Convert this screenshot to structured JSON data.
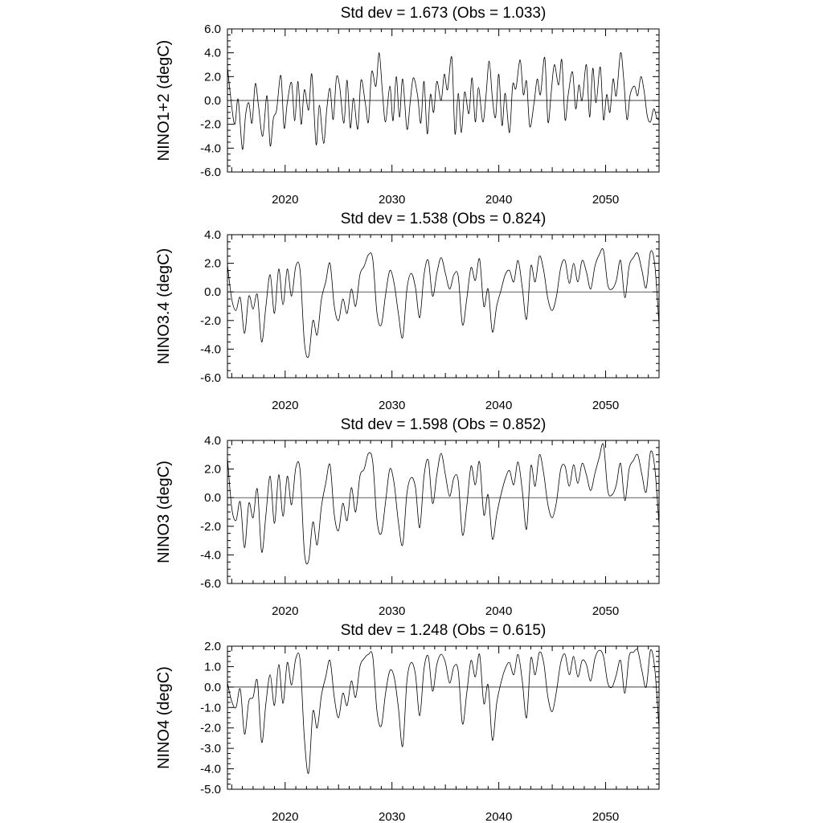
{
  "chart_data": [
    {
      "type": "line",
      "title": "Std dev = 1.673 (Obs = 1.033)",
      "ylabel": "NINO1+2 (degC)",
      "xlabel": "",
      "xlim": [
        2014.6,
        2055
      ],
      "ylim": [
        -6,
        6
      ],
      "ymajor": 2,
      "yminor": 0.5,
      "ytick_labels": [
        "-6.0",
        "-4.0",
        "-2.0",
        "0.0",
        "2.0",
        "4.0",
        "6.0"
      ],
      "xticks": [
        2020,
        2030,
        2040,
        2050
      ],
      "xtick_labels": [
        "2020",
        "2030",
        "2040",
        "2050"
      ],
      "reference_line": 0,
      "series": [
        {
          "x": [
            2014.6,
            2015.0,
            2015.3,
            2015.6,
            2016.0,
            2016.3,
            2016.6,
            2016.9,
            2017.2,
            2017.5,
            2017.9,
            2018.3,
            2018.6,
            2018.9,
            2019.2,
            2019.6,
            2019.9,
            2020.2,
            2020.6,
            2020.9,
            2021.2,
            2021.5,
            2021.8,
            2022.2,
            2022.5,
            2022.9,
            2023.2,
            2023.6,
            2023.9,
            2024.2,
            2024.5,
            2024.8,
            2025.1,
            2025.5,
            2025.8,
            2026.1,
            2026.4,
            2026.8,
            2027.1,
            2027.5,
            2027.8,
            2028.1,
            2028.5,
            2028.8,
            2029.1,
            2029.4,
            2029.8,
            2030.1,
            2030.4,
            2030.7,
            2031.0,
            2031.4,
            2031.7,
            2032.0,
            2032.4,
            2032.7,
            2033.0,
            2033.3,
            2033.6,
            2033.9,
            2034.2,
            2034.6,
            2034.9,
            2035.2,
            2035.6,
            2035.9,
            2036.2,
            2036.5,
            2036.8,
            2037.2,
            2037.5,
            2037.8,
            2038.1,
            2038.5,
            2038.8,
            2039.1,
            2039.4,
            2039.7,
            2040.0,
            2040.3,
            2040.6,
            2041.0,
            2041.3,
            2041.6,
            2042.0,
            2042.3,
            2042.6,
            2042.9,
            2043.3,
            2043.6,
            2043.9,
            2044.3,
            2044.6,
            2044.9,
            2045.2,
            2045.6,
            2045.9,
            2046.2,
            2046.5,
            2046.9,
            2047.2,
            2047.5,
            2047.8,
            2048.2,
            2048.5,
            2048.8,
            2049.1,
            2049.5,
            2049.8,
            2050.1,
            2050.4,
            2050.7,
            2051.0,
            2051.4,
            2051.7,
            2052.0,
            2052.3,
            2052.7,
            2053.0,
            2053.3,
            2053.6,
            2053.9,
            2054.2,
            2054.5,
            2054.8,
            2055.0
          ],
          "values": [
            2.8,
            -0.5,
            -2.0,
            0.1,
            -4.1,
            -1.2,
            -0.2,
            -1.9,
            1.4,
            -0.4,
            -3.0,
            0.4,
            -3.8,
            -1.5,
            -0.8,
            2.1,
            -2.3,
            -0.2,
            1.5,
            -1.7,
            1.6,
            -2.0,
            0.9,
            -0.8,
            2.2,
            -3.7,
            -0.4,
            -3.6,
            -0.7,
            1.0,
            -1.6,
            1.9,
            1.2,
            -1.9,
            1.7,
            -2.3,
            0.2,
            -2.4,
            1.7,
            -0.2,
            -1.8,
            2.4,
            1.2,
            4.0,
            0.8,
            -1.8,
            1.2,
            -1.7,
            2.0,
            -1.4,
            1.8,
            -2.4,
            -0.2,
            1.9,
            0.4,
            -1.9,
            1.6,
            -2.8,
            0.5,
            -1.0,
            1.6,
            0.0,
            2.2,
            0.9,
            3.6,
            -2.8,
            0.6,
            -2.7,
            0.7,
            -1.1,
            1.9,
            -1.8,
            1.1,
            -1.8,
            0.4,
            3.3,
            0.2,
            -1.4,
            2.2,
            -2.1,
            0.6,
            -2.7,
            1.3,
            1.0,
            3.4,
            0.5,
            1.6,
            -2.2,
            -0.2,
            1.8,
            0.5,
            3.6,
            -1.8,
            0.6,
            3.0,
            1.3,
            3.4,
            -1.6,
            0.5,
            2.4,
            -0.7,
            1.3,
            0.0,
            3.0,
            -1.4,
            2.7,
            -0.2,
            2.8,
            -1.6,
            0.5,
            -1.0,
            1.8,
            0.4,
            4.0,
            1.7,
            -1.6,
            0.5,
            1.2,
            0.4,
            2.0,
            0.8,
            -1.3,
            -1.8,
            -0.7,
            -1.5,
            -1.6
          ]
        }
      ]
    },
    {
      "type": "line",
      "title": "Std dev = 1.538 (Obs = 0.824)",
      "ylabel": "NINO3.4 (degC)",
      "xlabel": "",
      "xlim": [
        2014.6,
        2055
      ],
      "ylim": [
        -6,
        4
      ],
      "ymajor": 2,
      "yminor": 0.5,
      "ytick_labels": [
        "-6.0",
        "-4.0",
        "-2.0",
        "0.0",
        "2.0",
        "4.0"
      ],
      "xticks": [
        2020,
        2030,
        2040,
        2050
      ],
      "xtick_labels": [
        "2020",
        "2030",
        "2040",
        "2050"
      ],
      "reference_line": 0,
      "series": [
        {
          "x": [
            2014.6,
            2015.0,
            2015.4,
            2015.8,
            2016.2,
            2016.6,
            2017.0,
            2017.4,
            2017.8,
            2018.2,
            2018.6,
            2019.0,
            2019.4,
            2019.8,
            2020.2,
            2020.6,
            2021.0,
            2021.4,
            2021.8,
            2022.2,
            2022.6,
            2023.0,
            2023.4,
            2023.8,
            2024.2,
            2024.6,
            2025.0,
            2025.4,
            2025.8,
            2026.2,
            2026.6,
            2027.0,
            2027.4,
            2027.8,
            2028.2,
            2028.6,
            2029.0,
            2029.4,
            2029.8,
            2030.2,
            2030.6,
            2031.0,
            2031.4,
            2031.8,
            2032.2,
            2032.6,
            2033.0,
            2033.4,
            2033.8,
            2034.2,
            2034.6,
            2035.0,
            2035.4,
            2035.8,
            2036.2,
            2036.6,
            2037.0,
            2037.4,
            2037.8,
            2038.2,
            2038.6,
            2039.0,
            2039.4,
            2039.8,
            2040.2,
            2040.6,
            2041.0,
            2041.4,
            2041.8,
            2042.2,
            2042.6,
            2043.0,
            2043.4,
            2043.8,
            2044.2,
            2044.6,
            2045.0,
            2045.4,
            2045.8,
            2046.2,
            2046.6,
            2047.0,
            2047.4,
            2047.8,
            2048.2,
            2048.6,
            2049.0,
            2049.4,
            2049.8,
            2050.2,
            2050.6,
            2051.0,
            2051.4,
            2051.8,
            2052.2,
            2052.6,
            2053.0,
            2053.4,
            2053.8,
            2054.2,
            2054.6,
            2055.0
          ],
          "values": [
            1.9,
            -0.5,
            -1.3,
            -0.4,
            -2.9,
            -0.3,
            -1.2,
            -0.2,
            -3.5,
            -1.0,
            1.2,
            -1.5,
            1.6,
            -0.9,
            1.6,
            -0.3,
            1.8,
            1.5,
            -3.5,
            -4.5,
            -2.0,
            -3.0,
            -0.5,
            0.7,
            2.0,
            -1.0,
            -2.0,
            -0.5,
            -1.5,
            0.2,
            -1.0,
            1.2,
            1.8,
            2.6,
            2.3,
            -1.5,
            -2.3,
            -0.2,
            1.5,
            0.6,
            -1.5,
            -3.2,
            0.2,
            1.3,
            0.3,
            -1.8,
            1.2,
            2.2,
            -0.3,
            1.3,
            2.4,
            1.3,
            0.2,
            1.2,
            1.1,
            -2.3,
            -0.5,
            1.7,
            0.8,
            2.3,
            -1.0,
            0.2,
            -2.8,
            -1.0,
            0.1,
            1.2,
            1.5,
            0.7,
            2.2,
            0.3,
            -1.9,
            1.8,
            0.7,
            2.5,
            1.5,
            -0.5,
            -1.3,
            -0.3,
            1.7,
            2.2,
            0.6,
            2.0,
            0.7,
            2.2,
            1.4,
            0.2,
            1.8,
            2.6,
            2.9,
            0.5,
            0.2,
            0.8,
            2.2,
            -0.4,
            1.8,
            2.4,
            2.7,
            1.5,
            0.3,
            2.8,
            1.9,
            -2.3
          ]
        }
      ]
    },
    {
      "type": "line",
      "title": "Std dev = 1.598 (Obs = 0.852)",
      "ylabel": "NINO3 (degC)",
      "xlabel": "",
      "xlim": [
        2014.6,
        2055
      ],
      "ylim": [
        -6,
        4
      ],
      "ymajor": 2,
      "yminor": 0.5,
      "ytick_labels": [
        "-6.0",
        "-4.0",
        "-2.0",
        "0.0",
        "2.0",
        "4.0"
      ],
      "xticks": [
        2020,
        2030,
        2040,
        2050
      ],
      "xtick_labels": [
        "2020",
        "2030",
        "2040",
        "2050"
      ],
      "reference_line": 0,
      "series": [
        {
          "x": [
            2014.6,
            2015.0,
            2015.4,
            2015.8,
            2016.2,
            2016.6,
            2017.0,
            2017.4,
            2017.8,
            2018.2,
            2018.6,
            2019.0,
            2019.4,
            2019.8,
            2020.2,
            2020.6,
            2021.0,
            2021.4,
            2021.8,
            2022.2,
            2022.6,
            2023.0,
            2023.4,
            2023.8,
            2024.2,
            2024.6,
            2025.0,
            2025.4,
            2025.8,
            2026.2,
            2026.6,
            2027.0,
            2027.4,
            2027.8,
            2028.2,
            2028.6,
            2029.0,
            2029.4,
            2029.8,
            2030.2,
            2030.6,
            2031.0,
            2031.4,
            2031.8,
            2032.2,
            2032.6,
            2033.0,
            2033.4,
            2033.8,
            2034.2,
            2034.6,
            2035.0,
            2035.4,
            2035.8,
            2036.2,
            2036.6,
            2037.0,
            2037.4,
            2037.8,
            2038.2,
            2038.6,
            2039.0,
            2039.4,
            2039.8,
            2040.2,
            2040.6,
            2041.0,
            2041.4,
            2041.8,
            2042.2,
            2042.6,
            2043.0,
            2043.4,
            2043.8,
            2044.2,
            2044.6,
            2045.0,
            2045.4,
            2045.8,
            2046.2,
            2046.6,
            2047.0,
            2047.4,
            2047.8,
            2048.2,
            2048.6,
            2049.0,
            2049.4,
            2049.8,
            2050.2,
            2050.6,
            2051.0,
            2051.4,
            2051.8,
            2052.2,
            2052.6,
            2053.0,
            2053.4,
            2053.8,
            2054.2,
            2054.6,
            2055.0
          ],
          "values": [
            2.8,
            -0.7,
            -1.6,
            -0.3,
            -3.5,
            -0.4,
            -1.4,
            0.6,
            -3.8,
            -1.2,
            1.5,
            -1.8,
            1.6,
            -1.3,
            1.5,
            -0.5,
            2.1,
            1.9,
            -3.8,
            -4.4,
            -1.7,
            -3.3,
            -0.6,
            1.0,
            2.3,
            -1.2,
            -2.3,
            -0.4,
            -1.6,
            0.7,
            -1.0,
            1.5,
            2.0,
            3.1,
            2.5,
            -1.6,
            -2.5,
            -0.3,
            2.0,
            1.0,
            -1.7,
            -3.3,
            0.3,
            1.4,
            0.7,
            -2.1,
            1.5,
            2.6,
            -0.4,
            1.6,
            3.1,
            1.6,
            0.1,
            1.4,
            1.2,
            -2.6,
            -0.6,
            2.2,
            0.9,
            2.5,
            -1.2,
            0.2,
            -2.9,
            -1.2,
            0.2,
            1.3,
            1.9,
            0.9,
            2.5,
            0.5,
            -2.2,
            2.2,
            0.8,
            3.0,
            1.7,
            -0.5,
            -1.4,
            -0.3,
            2.0,
            2.2,
            0.8,
            2.3,
            1.0,
            2.4,
            1.6,
            0.5,
            1.7,
            2.8,
            3.7,
            0.5,
            0.2,
            0.9,
            2.4,
            -0.2,
            2.0,
            2.6,
            3.0,
            1.6,
            0.4,
            3.2,
            2.1,
            -1.9
          ]
        }
      ]
    },
    {
      "type": "line",
      "title": "Std dev = 1.248 (Obs = 0.615)",
      "ylabel": "NINO4 (degC)",
      "xlabel": "",
      "xlim": [
        2014.6,
        2055
      ],
      "ylim": [
        -5,
        2
      ],
      "ymajor": 1,
      "yminor": 0.25,
      "ytick_labels": [
        "-5.0",
        "-4.0",
        "-3.0",
        "-2.0",
        "-1.0",
        "0.0",
        "1.0",
        "2.0"
      ],
      "xticks": [
        2020,
        2030,
        2040,
        2050
      ],
      "xtick_labels": [
        "2020",
        "2030",
        "2040",
        "2050"
      ],
      "reference_line": 0,
      "series": [
        {
          "x": [
            2014.6,
            2015.0,
            2015.4,
            2015.8,
            2016.2,
            2016.6,
            2017.0,
            2017.4,
            2017.8,
            2018.2,
            2018.6,
            2019.0,
            2019.4,
            2019.8,
            2020.2,
            2020.6,
            2021.0,
            2021.4,
            2021.8,
            2022.2,
            2022.6,
            2023.0,
            2023.4,
            2023.8,
            2024.2,
            2024.6,
            2025.0,
            2025.4,
            2025.8,
            2026.2,
            2026.6,
            2027.0,
            2027.4,
            2027.8,
            2028.2,
            2028.6,
            2029.0,
            2029.4,
            2029.8,
            2030.2,
            2030.6,
            2031.0,
            2031.4,
            2031.8,
            2032.2,
            2032.6,
            2033.0,
            2033.4,
            2033.8,
            2034.2,
            2034.6,
            2035.0,
            2035.4,
            2035.8,
            2036.2,
            2036.6,
            2037.0,
            2037.4,
            2037.8,
            2038.2,
            2038.6,
            2039.0,
            2039.4,
            2039.8,
            2040.2,
            2040.6,
            2041.0,
            2041.4,
            2041.8,
            2042.2,
            2042.6,
            2043.0,
            2043.4,
            2043.8,
            2044.2,
            2044.6,
            2045.0,
            2045.4,
            2045.8,
            2046.2,
            2046.6,
            2047.0,
            2047.4,
            2047.8,
            2048.2,
            2048.6,
            2049.0,
            2049.4,
            2049.8,
            2050.2,
            2050.6,
            2051.0,
            2051.4,
            2051.8,
            2052.2,
            2052.6,
            2053.0,
            2053.4,
            2053.8,
            2054.2,
            2054.6,
            2055.0
          ],
          "values": [
            0.2,
            -0.7,
            -1.0,
            -0.1,
            -2.3,
            -0.7,
            -0.5,
            0.3,
            -2.7,
            -0.8,
            0.6,
            -0.9,
            1.1,
            -0.8,
            1.2,
            0.1,
            1.4,
            1.3,
            -2.5,
            -4.2,
            -1.2,
            -2.0,
            -0.4,
            0.5,
            1.3,
            -0.5,
            -1.5,
            -0.3,
            -0.9,
            0.3,
            -0.5,
            1.0,
            1.4,
            1.6,
            1.5,
            -1.2,
            -1.9,
            -0.3,
            0.8,
            0.5,
            -1.0,
            -2.9,
            0.3,
            1.2,
            0.6,
            -1.4,
            0.9,
            1.5,
            -0.2,
            1.1,
            1.6,
            1.2,
            0.2,
            1.0,
            0.8,
            -1.8,
            -0.3,
            1.3,
            0.5,
            1.6,
            -0.8,
            0.1,
            -2.6,
            -0.8,
            0.2,
            0.9,
            1.2,
            0.6,
            1.6,
            0.3,
            -1.5,
            1.4,
            0.6,
            1.7,
            1.2,
            -0.5,
            -1.2,
            -0.2,
            1.2,
            1.6,
            0.6,
            1.5,
            0.5,
            1.3,
            1.1,
            0.3,
            1.4,
            1.8,
            1.5,
            0.2,
            0.0,
            0.6,
            1.3,
            -0.3,
            1.5,
            1.7,
            1.8,
            0.8,
            0.0,
            1.8,
            0.9,
            -2.0
          ]
        }
      ]
    }
  ]
}
